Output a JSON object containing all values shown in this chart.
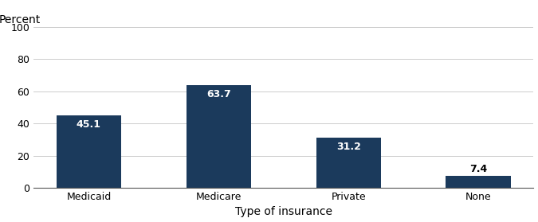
{
  "categories": [
    "Medicaid",
    "Medicare",
    "Private",
    "None"
  ],
  "values": [
    45.1,
    63.7,
    31.2,
    7.4
  ],
  "bar_color": "#1B3A5C",
  "label_color_inside": "#ffffff",
  "label_color_outside": "#000000",
  "ylabel": "Percent",
  "xlabel": "Type of insurance",
  "ylim": [
    0,
    100
  ],
  "yticks": [
    0,
    20,
    40,
    60,
    80,
    100
  ],
  "label_fontsize": 9,
  "axis_label_fontsize": 10,
  "tick_fontsize": 9,
  "background_color": "#ffffff",
  "outside_threshold": 15,
  "bar_width": 0.5
}
